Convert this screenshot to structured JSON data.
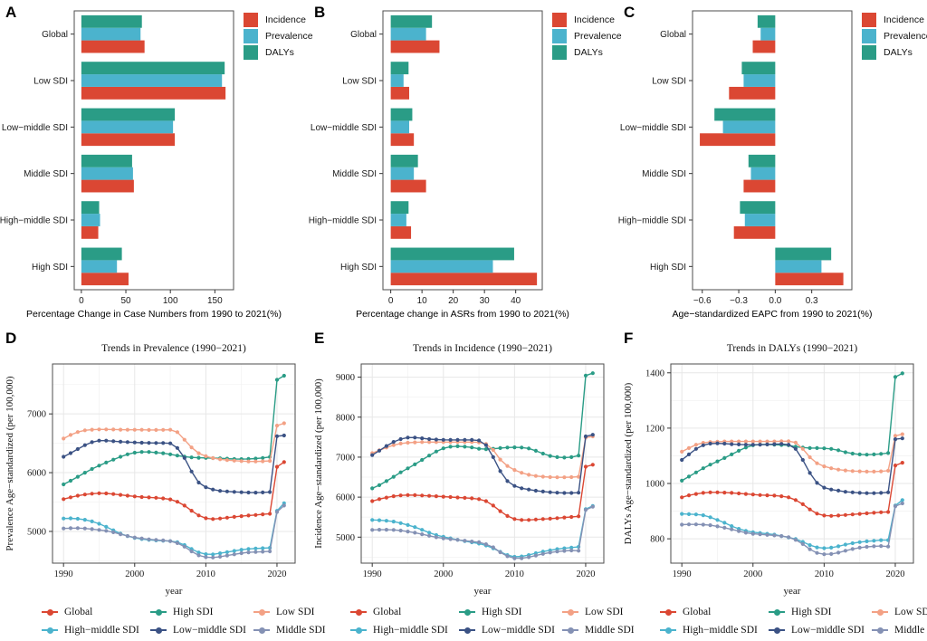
{
  "years": [
    1990,
    1991,
    1992,
    1993,
    1994,
    1995,
    1996,
    1997,
    1998,
    1999,
    2000,
    2001,
    2002,
    2003,
    2004,
    2005,
    2006,
    2007,
    2008,
    2009,
    2010,
    2011,
    2012,
    2013,
    2014,
    2015,
    2016,
    2017,
    2018,
    2019,
    2020,
    2021
  ],
  "colors": {
    "incidence_red": "#DB4733",
    "prevalence_blue": "#4BB3CD",
    "dalys_green": "#2A9C86",
    "global_red": "#DB4733",
    "high_sdi_green": "#2A9C86",
    "low_sdi_salmon": "#F3A185",
    "high_middle_sdi_cyan": "#4BB3CD",
    "low_middle_sdi_navy": "#3B5284",
    "middle_sdi_slate": "#8491B4"
  },
  "chart_data": [
    {
      "panel_letter": "A",
      "type": "bar",
      "orientation": "horizontal",
      "categories": [
        "Global",
        "Low SDI",
        "Low−middle SDI",
        "Middle SDI",
        "High−middle SDI",
        "High SDI"
      ],
      "xlabel": "Percentage Change in Case Numbers from 1990 to 2021(%)",
      "xticks": [
        0,
        50,
        100,
        150
      ],
      "xtick_labels": [
        "0",
        "50",
        "100",
        "150"
      ],
      "xlim": [
        -8,
        171
      ],
      "legend_position": "right-top",
      "series": [
        {
          "name": "Incidence",
          "color": "#DB4733",
          "values": [
            71,
            162,
            105,
            59,
            19,
            53
          ]
        },
        {
          "name": "Prevalence",
          "color": "#4BB3CD",
          "values": [
            66.5,
            158,
            103,
            58,
            21,
            40
          ]
        },
        {
          "name": "DALYs",
          "color": "#2A9C86",
          "values": [
            68,
            161,
            105,
            57,
            20,
            45.5
          ]
        }
      ]
    },
    {
      "panel_letter": "B",
      "type": "bar",
      "orientation": "horizontal",
      "categories": [
        "Global",
        "Low SDI",
        "Low−middle SDI",
        "Middle SDI",
        "High−middle SDI",
        "High SDI"
      ],
      "xlabel": "Percentage change in ASRs from 1990 to 2021(%)",
      "xticks": [
        0,
        10,
        20,
        30,
        40
      ],
      "xtick_labels": [
        "0",
        "10",
        "20",
        "30",
        "40"
      ],
      "xlim": [
        -2.5,
        48.5
      ],
      "legend_position": "right-top",
      "series": [
        {
          "name": "Incidence",
          "color": "#DB4733",
          "values": [
            15.6,
            5.9,
            7.4,
            11.3,
            6.5,
            46.8
          ]
        },
        {
          "name": "Prevalence",
          "color": "#4BB3CD",
          "values": [
            11.3,
            4.1,
            5.9,
            7.4,
            5,
            32.7
          ]
        },
        {
          "name": "DALYs",
          "color": "#2A9C86",
          "values": [
            13.2,
            5.7,
            6.9,
            8.7,
            5.7,
            39.5
          ]
        }
      ]
    },
    {
      "panel_letter": "C",
      "type": "bar",
      "orientation": "horizontal",
      "categories": [
        "Global",
        "Low SDI",
        "Low−middle SDI",
        "Middle SDI",
        "High−middle SDI",
        "High SDI"
      ],
      "xlabel": "Age−standardized EAPC from 1990 to 2021(%)",
      "xticks": [
        -0.6,
        -0.3,
        0,
        0.3
      ],
      "xtick_labels": [
        "−0.6",
        "−0.3",
        "0.0",
        "0.3"
      ],
      "xlim": [
        -0.68,
        0.63
      ],
      "legend_position": "right-top",
      "series": [
        {
          "name": "Incidence",
          "color": "#DB4733",
          "values": [
            -0.185,
            -0.38,
            -0.62,
            -0.26,
            -0.34,
            0.56
          ]
        },
        {
          "name": "Prevalence",
          "color": "#4BB3CD",
          "values": [
            -0.12,
            -0.26,
            -0.43,
            -0.2,
            -0.25,
            0.38
          ]
        },
        {
          "name": "DALYs",
          "color": "#2A9C86",
          "values": [
            -0.145,
            -0.275,
            -0.5,
            -0.22,
            -0.29,
            0.46
          ]
        }
      ]
    },
    {
      "panel_letter": "D",
      "type": "line",
      "title": "Trends in Prevalence (1990−2021)",
      "xlabel": "year",
      "ylabel": "Prevalence Age−standardized (per 100,000)",
      "xticks": [
        1990,
        2000,
        2010,
        2020
      ],
      "xtick_labels": [
        "1990",
        "2000",
        "2010",
        "2020"
      ],
      "yticks": [
        5000,
        6000,
        7000
      ],
      "ytick_labels": [
        "5000",
        "6000",
        "7000"
      ],
      "xlim": [
        1988.45,
        2022.55
      ],
      "ylim": [
        4460,
        7850
      ],
      "grid": true,
      "legend_position": "bottom",
      "series": [
        {
          "name": "Global",
          "color": "#DB4733",
          "values": [
            5550,
            5580,
            5608,
            5628,
            5642,
            5650,
            5646,
            5636,
            5622,
            5608,
            5595,
            5585,
            5578,
            5572,
            5562,
            5545,
            5505,
            5440,
            5352,
            5272,
            5225,
            5210,
            5220,
            5234,
            5248,
            5260,
            5270,
            5280,
            5290,
            5300,
            6100,
            6180
          ]
        },
        {
          "name": "High SDI",
          "color": "#2A9C86",
          "values": [
            5800,
            5862,
            5930,
            6000,
            6062,
            6120,
            6172,
            6222,
            6270,
            6312,
            6340,
            6352,
            6352,
            6342,
            6330,
            6312,
            6290,
            6272,
            6260,
            6254,
            6250,
            6248,
            6244,
            6238,
            6232,
            6230,
            6234,
            6240,
            6250,
            6268,
            7580,
            7650
          ]
        },
        {
          "name": "Low SDI",
          "color": "#F3A185",
          "values": [
            6580,
            6642,
            6692,
            6720,
            6732,
            6736,
            6736,
            6734,
            6732,
            6730,
            6730,
            6730,
            6726,
            6726,
            6728,
            6730,
            6690,
            6560,
            6430,
            6330,
            6280,
            6248,
            6228,
            6214,
            6204,
            6196,
            6190,
            6190,
            6194,
            6200,
            6800,
            6840
          ]
        },
        {
          "name": "High−middle SDI",
          "color": "#4BB3CD",
          "values": [
            5220,
            5222,
            5215,
            5198,
            5170,
            5130,
            5078,
            5020,
            4962,
            4920,
            4890,
            4870,
            4856,
            4846,
            4840,
            4834,
            4818,
            4768,
            4700,
            4642,
            4612,
            4610,
            4628,
            4648,
            4668,
            4688,
            4702,
            4710,
            4715,
            4720,
            5350,
            5480
          ]
        },
        {
          "name": "Low−middle SDI",
          "color": "#3B5284",
          "values": [
            6270,
            6332,
            6402,
            6468,
            6518,
            6545,
            6545,
            6536,
            6526,
            6520,
            6514,
            6510,
            6506,
            6505,
            6505,
            6498,
            6420,
            6250,
            6020,
            5832,
            5752,
            5712,
            5690,
            5680,
            5672,
            5666,
            5662,
            5660,
            5664,
            5670,
            6620,
            6632
          ]
        },
        {
          "name": "Middle SDI",
          "color": "#8491B4",
          "values": [
            5050,
            5055,
            5056,
            5050,
            5040,
            5026,
            5010,
            4986,
            4952,
            4922,
            4896,
            4880,
            4866,
            4856,
            4846,
            4834,
            4800,
            4740,
            4660,
            4592,
            4562,
            4556,
            4570,
            4590,
            4610,
            4630,
            4644,
            4650,
            4654,
            4660,
            5330,
            5440
          ]
        }
      ]
    },
    {
      "panel_letter": "E",
      "type": "line",
      "title": "Trends in Incidence (1990−2021)",
      "xlabel": "year",
      "ylabel": "Incidence Age−standardized (per 100,000)",
      "xticks": [
        1990,
        2000,
        2010,
        2020
      ],
      "xtick_labels": [
        "1990",
        "2000",
        "2010",
        "2020"
      ],
      "yticks": [
        5000,
        6000,
        7000,
        8000,
        9000
      ],
      "ytick_labels": [
        "5000",
        "6000",
        "7000",
        "8000",
        "9000"
      ],
      "xlim": [
        1988.45,
        2022.55
      ],
      "ylim": [
        4350,
        9330
      ],
      "grid": true,
      "legend_position": "bottom",
      "series": [
        {
          "name": "Global",
          "color": "#DB4733",
          "values": [
            5900,
            5950,
            5990,
            6022,
            6044,
            6052,
            6050,
            6042,
            6032,
            6022,
            6012,
            6002,
            5992,
            5982,
            5970,
            5950,
            5900,
            5790,
            5650,
            5530,
            5452,
            5430,
            5430,
            5440,
            5452,
            5462,
            5476,
            5490,
            5504,
            5520,
            6760,
            6810
          ]
        },
        {
          "name": "High SDI",
          "color": "#2A9C86",
          "values": [
            6220,
            6300,
            6400,
            6510,
            6620,
            6720,
            6820,
            6930,
            7040,
            7140,
            7220,
            7262,
            7272,
            7262,
            7242,
            7210,
            7200,
            7210,
            7228,
            7240,
            7246,
            7240,
            7218,
            7160,
            7090,
            7030,
            7000,
            6990,
            7000,
            7040,
            9040,
            9100
          ]
        },
        {
          "name": "Low SDI",
          "color": "#F3A185",
          "values": [
            7100,
            7170,
            7240,
            7300,
            7340,
            7360,
            7370,
            7376,
            7376,
            7376,
            7376,
            7376,
            7376,
            7376,
            7376,
            7370,
            7330,
            7180,
            6940,
            6780,
            6680,
            6610,
            6560,
            6530,
            6512,
            6500,
            6495,
            6495,
            6500,
            6510,
            7490,
            7520
          ]
        },
        {
          "name": "High−middle SDI",
          "color": "#4BB3CD",
          "values": [
            5430,
            5422,
            5410,
            5388,
            5350,
            5302,
            5250,
            5182,
            5112,
            5052,
            5008,
            4970,
            4935,
            4900,
            4870,
            4840,
            4792,
            4722,
            4632,
            4552,
            4508,
            4518,
            4552,
            4598,
            4640,
            4672,
            4700,
            4722,
            4740,
            4758,
            5700,
            5780
          ]
        },
        {
          "name": "Low−middle SDI",
          "color": "#3B5284",
          "values": [
            7050,
            7162,
            7280,
            7382,
            7452,
            7490,
            7490,
            7472,
            7452,
            7440,
            7432,
            7430,
            7430,
            7430,
            7430,
            7418,
            7300,
            7000,
            6650,
            6400,
            6282,
            6222,
            6190,
            6162,
            6140,
            6122,
            6110,
            6105,
            6105,
            6110,
            7520,
            7560
          ]
        },
        {
          "name": "Middle SDI",
          "color": "#8491B4",
          "values": [
            5180,
            5186,
            5186,
            5180,
            5164,
            5140,
            5110,
            5072,
            5034,
            4998,
            4970,
            4950,
            4932,
            4912,
            4892,
            4872,
            4824,
            4746,
            4622,
            4522,
            4472,
            4472,
            4500,
            4540,
            4580,
            4614,
            4640,
            4656,
            4666,
            4660,
            5680,
            5760
          ]
        }
      ]
    },
    {
      "panel_letter": "F",
      "type": "line",
      "title": "Trends in DALYs (1990−2021)",
      "xlabel": "year",
      "ylabel": "DALYs Age−standardized (per 100,000)",
      "xticks": [
        1990,
        2000,
        2010,
        2020
      ],
      "xtick_labels": [
        "1990",
        "2000",
        "2010",
        "2020"
      ],
      "yticks": [
        800,
        1000,
        1200,
        1400
      ],
      "ytick_labels": [
        "800",
        "1000",
        "1200",
        "1400"
      ],
      "xlim": [
        1988.45,
        2022.55
      ],
      "ylim": [
        712,
        1432
      ],
      "grid": true,
      "legend_position": "bottom",
      "series": [
        {
          "name": "Global",
          "color": "#DB4733",
          "values": [
            950,
            957,
            962,
            966,
            968,
            968,
            967,
            966,
            964,
            962,
            960,
            958,
            957,
            956,
            954,
            950,
            940,
            925,
            906,
            891,
            884,
            883,
            884,
            886,
            888,
            890,
            892,
            894,
            896,
            897,
            1065,
            1075
          ]
        },
        {
          "name": "High SDI",
          "color": "#2A9C86",
          "values": [
            1010,
            1025,
            1040,
            1055,
            1068,
            1080,
            1092,
            1105,
            1118,
            1130,
            1138,
            1141,
            1141,
            1140,
            1139,
            1138,
            1133,
            1130,
            1128,
            1128,
            1127,
            1125,
            1120,
            1113,
            1108,
            1105,
            1104,
            1105,
            1107,
            1110,
            1385,
            1398
          ]
        },
        {
          "name": "Low SDI",
          "color": "#F3A185",
          "values": [
            1115,
            1128,
            1140,
            1147,
            1150,
            1151,
            1152,
            1152,
            1152,
            1152,
            1152,
            1152,
            1152,
            1152,
            1153,
            1153,
            1148,
            1125,
            1095,
            1073,
            1062,
            1055,
            1050,
            1047,
            1045,
            1044,
            1043,
            1043,
            1044,
            1046,
            1172,
            1178
          ]
        },
        {
          "name": "High−middle SDI",
          "color": "#4BB3CD",
          "values": [
            890,
            889,
            888,
            885,
            878,
            868,
            858,
            846,
            836,
            829,
            824,
            821,
            818,
            815,
            810,
            805,
            799,
            789,
            777,
            769,
            766,
            768,
            773,
            779,
            784,
            788,
            791,
            793,
            795,
            795,
            920,
            940
          ]
        },
        {
          "name": "Low−middle SDI",
          "color": "#3B5284",
          "values": [
            1085,
            1105,
            1125,
            1138,
            1144,
            1145,
            1144,
            1142,
            1141,
            1140,
            1140,
            1140,
            1141,
            1142,
            1143,
            1140,
            1125,
            1085,
            1038,
            1002,
            985,
            978,
            974,
            970,
            968,
            966,
            965,
            965,
            966,
            968,
            1160,
            1163
          ]
        },
        {
          "name": "Middle SDI",
          "color": "#8491B4",
          "values": [
            851,
            852,
            852,
            851,
            849,
            845,
            840,
            834,
            828,
            822,
            818,
            816,
            814,
            812,
            810,
            806,
            796,
            781,
            762,
            749,
            744,
            745,
            750,
            757,
            763,
            768,
            771,
            773,
            774,
            772,
            918,
            928
          ]
        }
      ]
    }
  ]
}
